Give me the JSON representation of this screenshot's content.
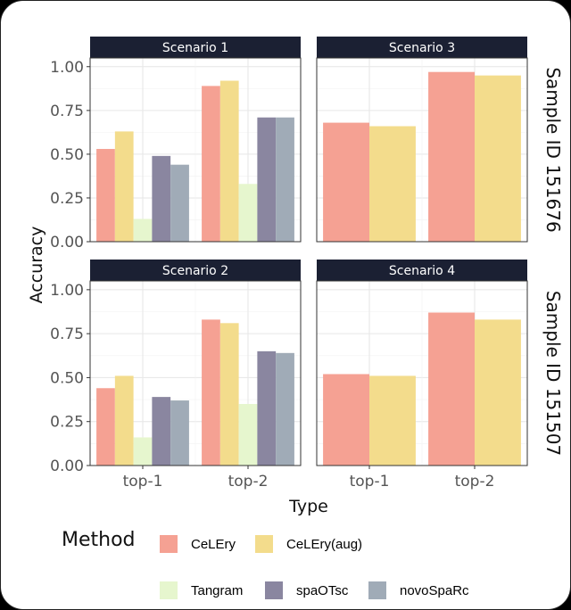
{
  "chart_data": {
    "type": "bar",
    "title": "",
    "xlabel": "Type",
    "ylabel": "Accuracy",
    "ylim": [
      0,
      1.05
    ],
    "yticks": [
      "0.00",
      "0.25",
      "0.50",
      "0.75",
      "1.00"
    ],
    "categories": [
      "top-1",
      "top-2"
    ],
    "legend_title": "Method",
    "methods": [
      {
        "name": "CeLEry",
        "color": "#F5A193"
      },
      {
        "name": "CeLEry(aug)",
        "color": "#F3DC8C"
      },
      {
        "name": "Tangram",
        "color": "#E6F6CE"
      },
      {
        "name": "spaOTsc",
        "color": "#8A86A0"
      },
      {
        "name": "novoSpaRc",
        "color": "#A0ABB7"
      }
    ],
    "row_strips": [
      "Sample ID 151676",
      "Sample ID 151507"
    ],
    "panels": [
      {
        "title": "Scenario 1",
        "series": [
          {
            "name": "CeLEry",
            "values": [
              0.53,
              0.89
            ]
          },
          {
            "name": "CeLEry(aug)",
            "values": [
              0.63,
              0.92
            ]
          },
          {
            "name": "Tangram",
            "values": [
              0.13,
              0.33
            ]
          },
          {
            "name": "spaOTsc",
            "values": [
              0.49,
              0.71
            ]
          },
          {
            "name": "novoSpaRc",
            "values": [
              0.44,
              0.71
            ]
          }
        ]
      },
      {
        "title": "Scenario 3",
        "series": [
          {
            "name": "CeLEry",
            "values": [
              0.68,
              0.97
            ]
          },
          {
            "name": "CeLEry(aug)",
            "values": [
              0.66,
              0.95
            ]
          }
        ]
      },
      {
        "title": "Scenario 2",
        "series": [
          {
            "name": "CeLEry",
            "values": [
              0.44,
              0.83
            ]
          },
          {
            "name": "CeLEry(aug)",
            "values": [
              0.51,
              0.81
            ]
          },
          {
            "name": "Tangram",
            "values": [
              0.16,
              0.35
            ]
          },
          {
            "name": "spaOTsc",
            "values": [
              0.39,
              0.65
            ]
          },
          {
            "name": "novoSpaRc",
            "values": [
              0.37,
              0.64
            ]
          }
        ]
      },
      {
        "title": "Scenario 4",
        "series": [
          {
            "name": "CeLEry",
            "values": [
              0.52,
              0.87
            ]
          },
          {
            "name": "CeLEry(aug)",
            "values": [
              0.51,
              0.83
            ]
          }
        ]
      }
    ]
  }
}
